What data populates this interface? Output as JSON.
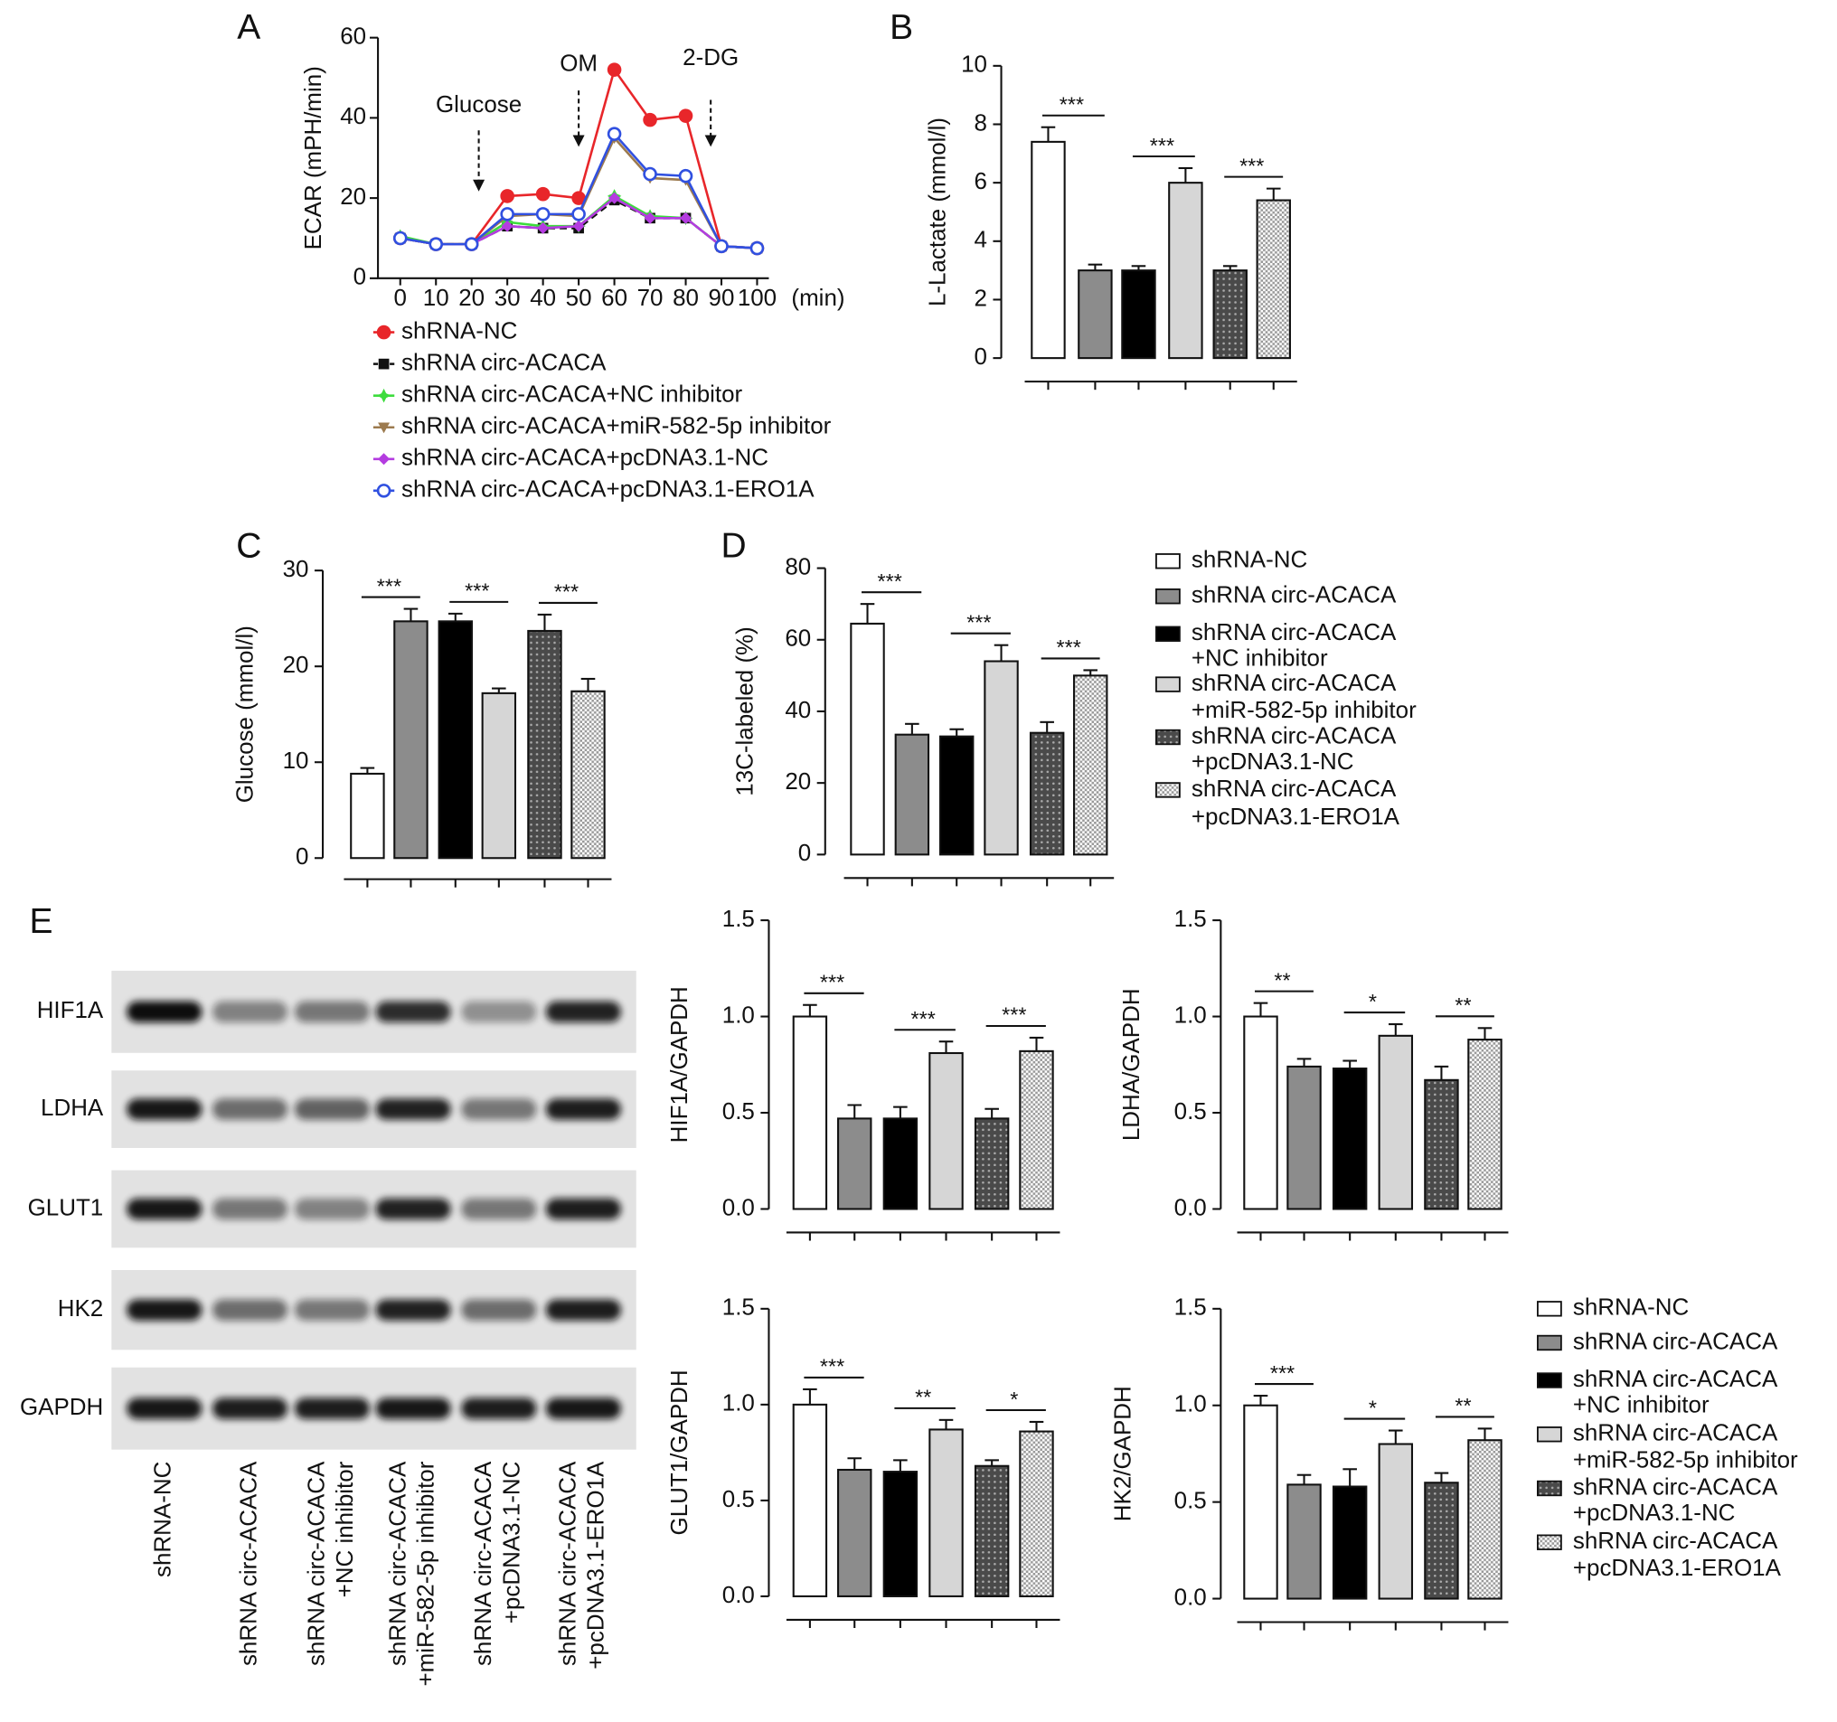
{
  "chart_data": [
    {
      "type": "line",
      "panel": "A",
      "y_label": "ECAR (mPH/min)",
      "x_label": "(min)",
      "x": [
        0,
        10,
        20,
        30,
        40,
        50,
        60,
        70,
        80,
        90,
        100
      ],
      "xlim": [
        0,
        100
      ],
      "xticks": [
        0,
        10,
        20,
        30,
        40,
        50,
        60,
        70,
        80,
        90,
        100
      ],
      "ylim": [
        0,
        60
      ],
      "yticks": [
        0,
        20,
        40,
        60
      ],
      "annotations": [
        {
          "text": "Glucose",
          "x": 22
        },
        {
          "text": "OM",
          "x": 50
        },
        {
          "text": "2-DG",
          "x": 87
        }
      ],
      "series": [
        {
          "name": "shRNA-NC",
          "color": "#e8262a",
          "marker": "circle",
          "dashed": false,
          "values": [
            10,
            8.5,
            8.5,
            20.5,
            21,
            20,
            52,
            39.5,
            40.5,
            8,
            7.5
          ]
        },
        {
          "name": "shRNA circ-ACACA",
          "color": "#111111",
          "marker": "square",
          "dashed": true,
          "values": [
            10,
            8.5,
            8.5,
            13,
            12.5,
            12.5,
            19.5,
            15,
            15,
            8,
            7.5
          ]
        },
        {
          "name": "shRNA circ-ACACA+NC inhibitor",
          "color": "#3ddc3d",
          "marker": "star",
          "dashed": false,
          "values": [
            10.5,
            8.5,
            8.5,
            14,
            13,
            13,
            20.5,
            15.5,
            15,
            8,
            7.5
          ]
        },
        {
          "name": "shRNA circ-ACACA+miR-582-5p inhibitor",
          "color": "#9c7a4e",
          "marker": "triangle",
          "dashed": false,
          "values": [
            10,
            8.5,
            8.5,
            15.5,
            16,
            15.5,
            35,
            25,
            24.5,
            8,
            7.5
          ]
        },
        {
          "name": "shRNA circ-ACACA+pcDNA3.1-NC",
          "color": "#b43ce0",
          "marker": "diamond",
          "dashed": false,
          "values": [
            10,
            8.5,
            8.5,
            13,
            12.5,
            13,
            20,
            15,
            15,
            8,
            7.5
          ]
        },
        {
          "name": "shRNA circ-ACACA+pcDNA3.1-ERO1A",
          "color": "#3050e0",
          "marker": "open-circle",
          "dashed": false,
          "values": [
            10,
            8.5,
            8.5,
            16,
            16,
            16,
            36,
            26,
            25.5,
            8,
            7.5
          ]
        }
      ]
    },
    {
      "type": "bar",
      "panel": "B",
      "y_label": "L-Lactate (mmol/l)",
      "categories": [
        null,
        null,
        null,
        null,
        null,
        null
      ],
      "values": [
        7.4,
        3.0,
        3.0,
        6.0,
        3.0,
        5.4
      ],
      "errors": [
        0.5,
        0.2,
        0.15,
        0.5,
        0.15,
        0.4
      ],
      "colors": [
        "#ffffff",
        "#8c8c8c",
        "#000000",
        "#d6d6d6",
        "#555555",
        "#ffffff"
      ],
      "patterns": [
        "none",
        "none",
        "none",
        "none",
        "dots",
        "checker"
      ],
      "significance": [
        "***",
        "***",
        "***"
      ],
      "ylim": [
        0,
        10
      ],
      "yticks": [
        0,
        2,
        4,
        6,
        8,
        10
      ]
    },
    {
      "type": "bar",
      "panel": "C",
      "y_label": "Glucose (mmol/l)",
      "categories": [
        null,
        null,
        null,
        null,
        null,
        null
      ],
      "values": [
        8.8,
        24.7,
        24.7,
        17.2,
        23.7,
        17.4
      ],
      "errors": [
        0.6,
        1.3,
        0.8,
        0.5,
        1.7,
        1.3
      ],
      "colors": [
        "#ffffff",
        "#8c8c8c",
        "#000000",
        "#d6d6d6",
        "#555555",
        "#ffffff"
      ],
      "patterns": [
        "none",
        "none",
        "none",
        "none",
        "dots",
        "checker"
      ],
      "significance": [
        "***",
        "***",
        "***"
      ],
      "ylim": [
        0,
        30
      ],
      "yticks": [
        0,
        10,
        20,
        30
      ]
    },
    {
      "type": "bar",
      "panel": "D",
      "y_label": "13C-labeled (%)",
      "categories": [
        null,
        null,
        null,
        null,
        null,
        null
      ],
      "values": [
        64.5,
        33.5,
        33,
        54,
        34,
        50
      ],
      "errors": [
        5.5,
        3,
        2,
        4.5,
        3,
        1.5
      ],
      "colors": [
        "#ffffff",
        "#8c8c8c",
        "#000000",
        "#d6d6d6",
        "#555555",
        "#ffffff"
      ],
      "patterns": [
        "none",
        "none",
        "none",
        "none",
        "dots",
        "checker"
      ],
      "significance": [
        "***",
        "***",
        "***"
      ],
      "ylim": [
        0,
        80
      ],
      "yticks": [
        0,
        20,
        40,
        60,
        80
      ],
      "legend": [
        [
          "shRNA-NC"
        ],
        [
          "shRNA circ-ACACA"
        ],
        [
          "shRNA circ-ACACA",
          "+NC inhibitor"
        ],
        [
          "shRNA circ-ACACA",
          "+miR-582-5p inhibitor"
        ],
        [
          "shRNA circ-ACACA",
          "+pcDNA3.1-NC"
        ],
        [
          "shRNA circ-ACACA",
          "+pcDNA3.1-ERO1A"
        ]
      ]
    },
    {
      "type": "bar",
      "y_label": "HIF1A/GAPDH",
      "categories": [
        null,
        null,
        null,
        null,
        null,
        null
      ],
      "values": [
        1.0,
        0.47,
        0.47,
        0.81,
        0.47,
        0.82
      ],
      "errors": [
        0.06,
        0.07,
        0.06,
        0.06,
        0.05,
        0.07
      ],
      "colors": [
        "#ffffff",
        "#8c8c8c",
        "#000000",
        "#d6d6d6",
        "#555555",
        "#ffffff"
      ],
      "patterns": [
        "none",
        "none",
        "none",
        "none",
        "dots",
        "checker"
      ],
      "significance": [
        "***",
        "***",
        "***"
      ],
      "ylim": [
        0,
        1.5
      ],
      "yticks": [
        {
          "value": 0,
          "label": "0.0"
        },
        {
          "value": 0.5,
          "label": "0.5"
        },
        {
          "value": 1,
          "label": "1.0"
        },
        {
          "value": 1.5,
          "label": "1.5"
        }
      ]
    },
    {
      "type": "bar",
      "y_label": "LDHA/GAPDH",
      "categories": [
        null,
        null,
        null,
        null,
        null,
        null
      ],
      "values": [
        1.0,
        0.74,
        0.73,
        0.9,
        0.67,
        0.88
      ],
      "errors": [
        0.07,
        0.04,
        0.04,
        0.06,
        0.07,
        0.06
      ],
      "colors": [
        "#ffffff",
        "#8c8c8c",
        "#000000",
        "#d6d6d6",
        "#555555",
        "#ffffff"
      ],
      "patterns": [
        "none",
        "none",
        "none",
        "none",
        "dots",
        "checker"
      ],
      "significance": [
        "**",
        "*",
        "**"
      ],
      "ylim": [
        0,
        1.5
      ],
      "yticks": [
        {
          "value": 0,
          "label": "0.0"
        },
        {
          "value": 0.5,
          "label": "0.5"
        },
        {
          "value": 1,
          "label": "1.0"
        },
        {
          "value": 1.5,
          "label": "1.5"
        }
      ]
    },
    {
      "type": "bar",
      "y_label": "GLUT1/GAPDH",
      "categories": [
        null,
        null,
        null,
        null,
        null,
        null
      ],
      "values": [
        1.0,
        0.66,
        0.65,
        0.87,
        0.68,
        0.86
      ],
      "errors": [
        0.08,
        0.06,
        0.06,
        0.05,
        0.03,
        0.05
      ],
      "colors": [
        "#ffffff",
        "#8c8c8c",
        "#000000",
        "#d6d6d6",
        "#555555",
        "#ffffff"
      ],
      "patterns": [
        "none",
        "none",
        "none",
        "none",
        "dots",
        "checker"
      ],
      "significance": [
        "***",
        "**",
        "*"
      ],
      "ylim": [
        0,
        1.5
      ],
      "yticks": [
        {
          "value": 0,
          "label": "0.0"
        },
        {
          "value": 0.5,
          "label": "0.5"
        },
        {
          "value": 1,
          "label": "1.0"
        },
        {
          "value": 1.5,
          "label": "1.5"
        }
      ]
    },
    {
      "type": "bar",
      "y_label": "HK2/GAPDH",
      "categories": [
        null,
        null,
        null,
        null,
        null,
        null
      ],
      "values": [
        1.0,
        0.59,
        0.58,
        0.8,
        0.6,
        0.82
      ],
      "errors": [
        0.05,
        0.05,
        0.09,
        0.07,
        0.05,
        0.06
      ],
      "colors": [
        "#ffffff",
        "#8c8c8c",
        "#000000",
        "#d6d6d6",
        "#555555",
        "#ffffff"
      ],
      "patterns": [
        "none",
        "none",
        "none",
        "none",
        "dots",
        "checker"
      ],
      "significance": [
        "***",
        "*",
        "**"
      ],
      "ylim": [
        0,
        1.5
      ],
      "yticks": [
        {
          "value": 0,
          "label": "0.0"
        },
        {
          "value": 0.5,
          "label": "0.5"
        },
        {
          "value": 1,
          "label": "1.0"
        },
        {
          "value": 1.5,
          "label": "1.5"
        }
      ],
      "legend": [
        [
          "shRNA-NC"
        ],
        [
          "shRNA circ-ACACA"
        ],
        [
          "shRNA circ-ACACA",
          "+NC inhibitor"
        ],
        [
          "shRNA circ-ACACA",
          "+miR-582-5p inhibitor"
        ],
        [
          "shRNA circ-ACACA",
          "+pcDNA3.1-NC"
        ],
        [
          "shRNA circ-ACACA",
          "+pcDNA3.1-ERO1A"
        ]
      ]
    }
  ],
  "western_blot": {
    "panel": "E",
    "proteins": [
      "HIF1A",
      "LDHA",
      "GLUT1",
      "HK2",
      "GAPDH"
    ],
    "lanes": [
      [
        "shRNA-NC"
      ],
      [
        "shRNA circ-ACACA"
      ],
      [
        "shRNA circ-ACACA",
        "+NC inhibitor"
      ],
      [
        "shRNA circ-ACACA",
        "+miR-582-5p inhibitor"
      ],
      [
        "shRNA circ-ACACA",
        "+pcDNA3.1-NC"
      ],
      [
        "shRNA circ-ACACA",
        "+pcDNA3.1-ERO1A"
      ]
    ]
  }
}
